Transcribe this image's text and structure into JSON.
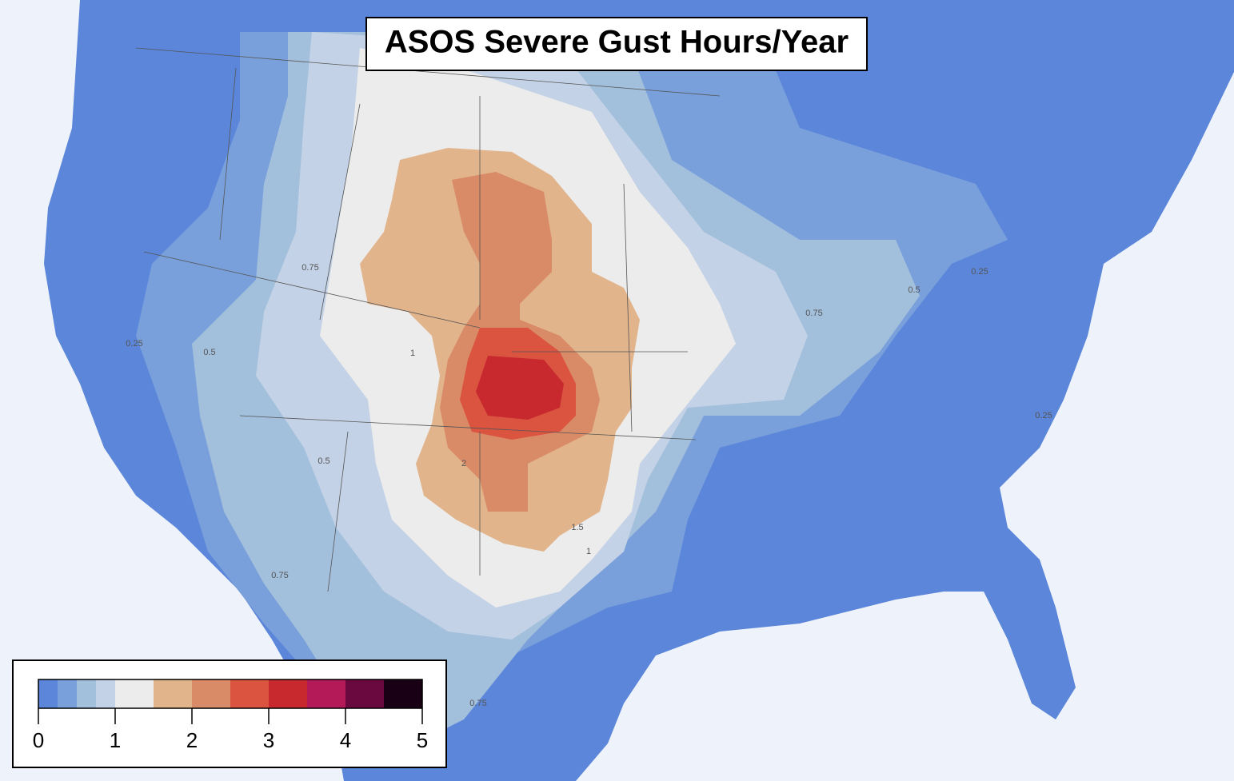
{
  "title": "ASOS Severe Gust Hours/Year",
  "colorbar": {
    "lim": [
      0,
      5
    ],
    "bounds": [
      0,
      0.25,
      0.5,
      0.75,
      1,
      1.5,
      2,
      2.5,
      3,
      3.5,
      4,
      4.5,
      5
    ],
    "colors": [
      "#5b86d9",
      "#7aa0dc",
      "#a2bfdc",
      "#c3d2e6",
      "#ececec",
      "#e2b48c",
      "#d98b67",
      "#da5440",
      "#c8292f",
      "#b51a58",
      "#6a0840",
      "#1a0014"
    ],
    "ticks": [
      0,
      1,
      2,
      3,
      4,
      5
    ]
  },
  "contour_labels": [
    0.25,
    0.25,
    0.25,
    0.5,
    0.5,
    0.5,
    0.75,
    0.75,
    0.75,
    0.75,
    1,
    1,
    1.5,
    2
  ]
}
